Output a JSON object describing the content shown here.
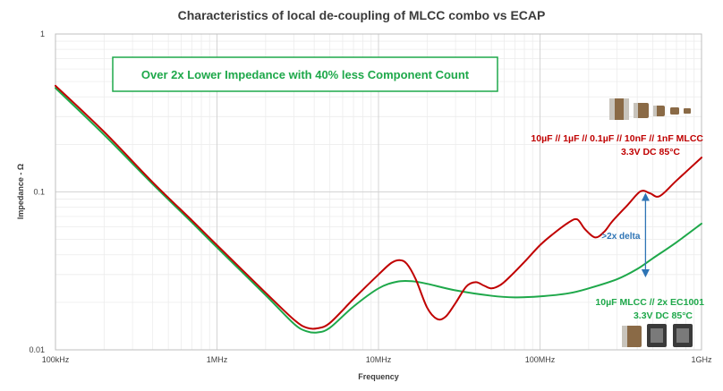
{
  "chart_data": {
    "type": "line",
    "title": "Characteristics of local de-coupling of MLCC combo vs ECAP",
    "xlabel": "Frequency",
    "ylabel": "Impedance - Ω",
    "x_scale": "log",
    "y_scale": "log",
    "xlim": [
      100000,
      1000000000
    ],
    "ylim": [
      0.01,
      1
    ],
    "x_ticks": [
      {
        "value": 100000,
        "label": "100kHz"
      },
      {
        "value": 1000000,
        "label": "1MHz"
      },
      {
        "value": 10000000,
        "label": "10MHz"
      },
      {
        "value": 100000000,
        "label": "100MHz"
      },
      {
        "value": 1000000000,
        "label": "1GHz"
      }
    ],
    "y_ticks": [
      {
        "value": 0.01,
        "label": "0.01"
      },
      {
        "value": 0.1,
        "label": "0.1"
      },
      {
        "value": 1,
        "label": "1"
      }
    ],
    "grid": true,
    "colors": {
      "red": "#c00000",
      "green": "#1ea84a",
      "callout": "#1ea84a",
      "delta": "#2e74b5"
    },
    "series": [
      {
        "name": "10µF // 1µF // 0.1µF // 10nF // 1nF MLCC",
        "subtitle": "3.3V DC 85°C",
        "color": "#c00000",
        "x": [
          100000,
          200000,
          400000,
          700000,
          1000000,
          2000000,
          3000000,
          3600000,
          4200000,
          5000000,
          7000000,
          10000000,
          12000000,
          13500000,
          15000000,
          17000000,
          20000000,
          23000000,
          26000000,
          30000000,
          35000000,
          40000000,
          45000000,
          50000000,
          57000000,
          65000000,
          80000000,
          100000000,
          120000000,
          150000000,
          170000000,
          190000000,
          220000000,
          250000000,
          280000000,
          350000000,
          420000000,
          480000000,
          550000000,
          700000000,
          1000000000
        ],
        "y": [
          0.47,
          0.24,
          0.115,
          0.066,
          0.046,
          0.023,
          0.0155,
          0.0138,
          0.0137,
          0.0148,
          0.021,
          0.03,
          0.0355,
          0.037,
          0.035,
          0.028,
          0.0185,
          0.0157,
          0.0162,
          0.0198,
          0.0252,
          0.0268,
          0.0255,
          0.0245,
          0.0258,
          0.029,
          0.036,
          0.046,
          0.054,
          0.064,
          0.067,
          0.058,
          0.0515,
          0.056,
          0.065,
          0.083,
          0.101,
          0.098,
          0.094,
          0.118,
          0.165
        ]
      },
      {
        "name": "10µF MLCC // 2x EC1001",
        "subtitle": "3.3V DC 85°C",
        "color": "#1ea84a",
        "x": [
          100000,
          200000,
          400000,
          700000,
          1000000,
          2000000,
          3000000,
          3600000,
          4200000,
          5000000,
          7000000,
          10000000,
          13000000,
          16000000,
          20000000,
          30000000,
          50000000,
          70000000,
          100000000,
          150000000,
          200000000,
          300000000,
          400000000,
          500000000,
          700000000,
          1000000000
        ],
        "y": [
          0.455,
          0.23,
          0.112,
          0.064,
          0.0445,
          0.0222,
          0.0146,
          0.0131,
          0.0129,
          0.0138,
          0.0188,
          0.0245,
          0.027,
          0.0272,
          0.0262,
          0.0238,
          0.022,
          0.0215,
          0.0218,
          0.0228,
          0.0245,
          0.028,
          0.0325,
          0.038,
          0.048,
          0.063
        ]
      }
    ],
    "annotations": {
      "callout": "Over 2x Lower Impedance with 40% less Component Count",
      "delta": ">2x delta",
      "delta_x": 450000000,
      "delta_y_top": 0.093,
      "delta_y_bottom": 0.0305
    }
  }
}
